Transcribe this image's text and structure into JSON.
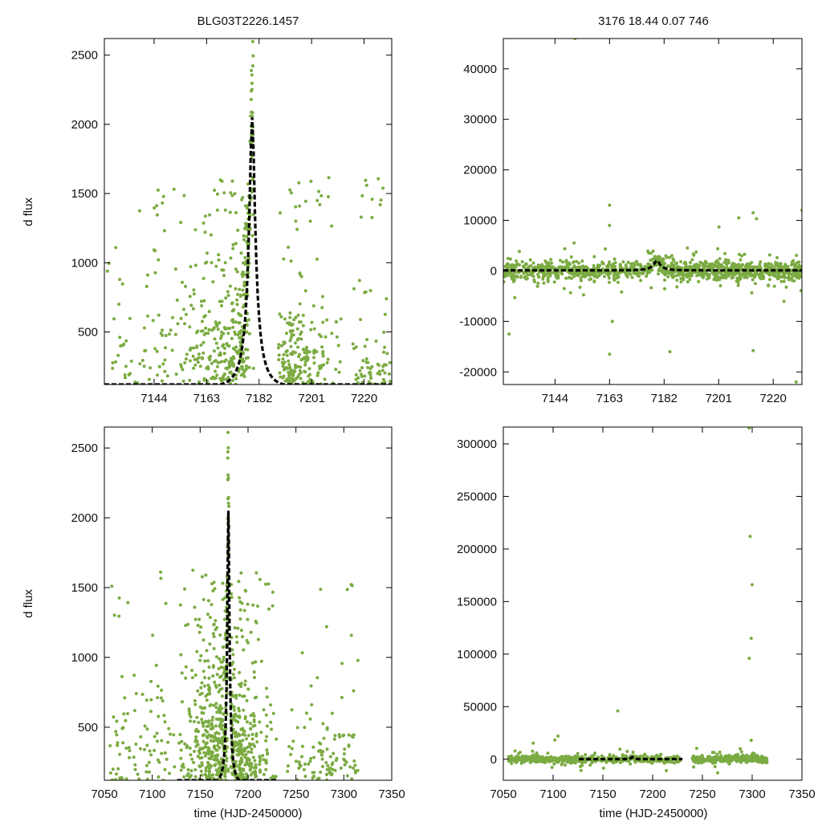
{
  "figure_titles": {
    "left": "BLG03T2226.1457",
    "right": "3176  18.44  0.07  746"
  },
  "axis_titles": {
    "y_top": "d flux",
    "y_bottom": "d flux",
    "x_bottom_left": "time (HJD-2450000)",
    "x_bottom_right": "time (HJD-2450000)"
  },
  "colors": {
    "points": "#7bab42",
    "fit": "#000000"
  },
  "model": {
    "t0": 7179.5,
    "tE": 5.2,
    "peak": 2050,
    "baseline": 100
  },
  "chart_data": [
    {
      "id": "top-left",
      "type": "scatter",
      "title": "BLG03T2226.1457",
      "xlabel": "",
      "ylabel": "d flux",
      "xlim": [
        7126,
        7230
      ],
      "ylim": [
        120,
        2620
      ],
      "xticks": [
        7144,
        7163,
        7182,
        7201,
        7220
      ],
      "yticks": [
        500,
        1000,
        1500,
        2000,
        2500
      ],
      "series": [
        {
          "name": "data",
          "kind": "points",
          "clusters": [
            {
              "x": [
                7127,
                7180
              ],
              "center": 7178,
              "width": 10,
              "scatter": 350,
              "n": 700
            },
            {
              "x": [
                7189,
                7212
              ],
              "center": 7195,
              "width": 6,
              "scatter": 250,
              "n": 360
            },
            {
              "x": [
                7215,
                7230
              ],
              "center": 7222,
              "width": 5,
              "scatter": 180,
              "n": 120
            }
          ]
        },
        {
          "name": "model",
          "kind": "dashed-line",
          "peak_x": 7180,
          "peak_y": 2050
        }
      ]
    },
    {
      "id": "top-right",
      "type": "scatter",
      "title": "3176  18.44  0.07  746",
      "xlabel": "",
      "ylabel": "",
      "xlim": [
        7126,
        7230
      ],
      "ylim": [
        -22500,
        46000
      ],
      "xticks": [
        7144,
        7163,
        7182,
        7201,
        7220
      ],
      "yticks": [
        -20000,
        -10000,
        0,
        10000,
        20000,
        30000,
        40000
      ],
      "series": [
        {
          "name": "data",
          "kind": "points",
          "level": 0,
          "scatter": 900,
          "n": 1200,
          "outliers": [
            [
              7151,
              46000
            ],
            [
              7163,
              13000
            ],
            [
              7163,
              9000
            ],
            [
              7164,
              -10000
            ],
            [
              7163,
              -16500
            ],
            [
              7184,
              -16000
            ],
            [
              7128,
              -12500
            ],
            [
              7208,
              10500
            ],
            [
              7213,
              11500
            ],
            [
              7213,
              -15800
            ],
            [
              7230,
              12000
            ],
            [
              7228,
              -22000
            ]
          ]
        },
        {
          "name": "model",
          "kind": "dashed-line",
          "peak_x": 7180,
          "peak_y": 2050
        }
      ]
    },
    {
      "id": "bottom-left",
      "type": "scatter",
      "title": "",
      "xlabel": "time (HJD-2450000)",
      "ylabel": "d flux",
      "xlim": [
        7050,
        7350
      ],
      "ylim": [
        120,
        2650
      ],
      "xticks": [
        7050,
        7100,
        7150,
        7200,
        7250,
        7300,
        7350
      ],
      "yticks": [
        500,
        1000,
        1500,
        2000,
        2500
      ],
      "series": [
        {
          "name": "data",
          "kind": "points",
          "clusters": [
            {
              "x": [
                7055,
                7180
              ],
              "center": 7172,
              "width": 18,
              "scatter": 400,
              "n": 900
            },
            {
              "x": [
                7182,
                7230
              ],
              "center": 7190,
              "width": 12,
              "scatter": 300,
              "n": 500
            },
            {
              "x": [
                7240,
                7315
              ],
              "center": 7280,
              "width": 25,
              "scatter": 200,
              "n": 200
            }
          ]
        },
        {
          "name": "model",
          "kind": "dashed-line",
          "peak_x": 7180,
          "peak_y": 2050
        }
      ]
    },
    {
      "id": "bottom-right",
      "type": "scatter",
      "title": "",
      "xlabel": "time (HJD-2450000)",
      "ylabel": "",
      "xlim": [
        7050,
        7350
      ],
      "ylim": [
        -20000,
        316000
      ],
      "xticks": [
        7050,
        7100,
        7150,
        7200,
        7250,
        7300,
        7350
      ],
      "yticks": [
        0,
        50000,
        100000,
        150000,
        200000,
        250000,
        300000
      ],
      "series": [
        {
          "name": "data",
          "kind": "points",
          "level": 0,
          "scatter": 1600,
          "n": 900,
          "outliers": [
            [
              7297,
              315000
            ],
            [
              7298,
              212000
            ],
            [
              7300,
              166000
            ],
            [
              7299,
              115000
            ],
            [
              7297,
              96000
            ],
            [
              7299,
              18000
            ],
            [
              7165,
              46000
            ],
            [
              7105,
              22000
            ],
            [
              7288,
              10000
            ]
          ]
        },
        {
          "name": "model",
          "kind": "dashed-line",
          "peak_x": 7180,
          "peak_y": 2050
        }
      ]
    }
  ]
}
